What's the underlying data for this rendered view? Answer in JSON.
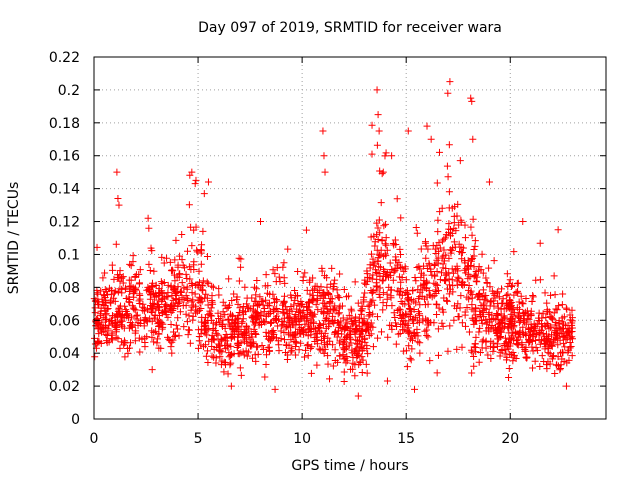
{
  "chart_data": {
    "type": "scatter",
    "title": "Day 097 of 2019, SRMTID for receiver wara",
    "xlabel": "GPS time / hours",
    "ylabel": "SRMTID / TECUs",
    "xlim": [
      0,
      24.6
    ],
    "ylim": [
      0,
      0.22
    ],
    "x_ticks": [
      0,
      5,
      10,
      15,
      20
    ],
    "x_tick_labels": [
      "0",
      "5",
      "10",
      "15",
      "20"
    ],
    "y_ticks": [
      0,
      0.02,
      0.04,
      0.06,
      0.08,
      0.1,
      0.12,
      0.14,
      0.16,
      0.18,
      0.2,
      0.22
    ],
    "y_tick_labels": [
      "0",
      "0.02",
      "0.04",
      "0.06",
      "0.08",
      "0.1",
      "0.12",
      "0.14",
      "0.16",
      "0.18",
      "0.2",
      "0.22"
    ],
    "grid": true,
    "legend": "none",
    "marker": "plus",
    "marker_color": "#ff0000",
    "sample_count": 2300,
    "x_range_of_data": [
      0,
      23
    ],
    "envelope": [
      {
        "t": 0,
        "median": 0.062,
        "spread": 0.012
      },
      {
        "t": 1,
        "median": 0.066,
        "spread": 0.013
      },
      {
        "t": 2,
        "median": 0.067,
        "spread": 0.013
      },
      {
        "t": 3,
        "median": 0.065,
        "spread": 0.013
      },
      {
        "t": 4,
        "median": 0.075,
        "spread": 0.015
      },
      {
        "t": 4.7,
        "median": 0.085,
        "spread": 0.02
      },
      {
        "t": 5.5,
        "median": 0.062,
        "spread": 0.014
      },
      {
        "t": 6.5,
        "median": 0.05,
        "spread": 0.011
      },
      {
        "t": 7.5,
        "median": 0.058,
        "spread": 0.012
      },
      {
        "t": 8.5,
        "median": 0.06,
        "spread": 0.012
      },
      {
        "t": 9.5,
        "median": 0.058,
        "spread": 0.012
      },
      {
        "t": 10.5,
        "median": 0.06,
        "spread": 0.013
      },
      {
        "t": 11,
        "median": 0.065,
        "spread": 0.017
      },
      {
        "t": 12,
        "median": 0.05,
        "spread": 0.012
      },
      {
        "t": 12.7,
        "median": 0.045,
        "spread": 0.012
      },
      {
        "t": 13.3,
        "median": 0.08,
        "spread": 0.02
      },
      {
        "t": 13.8,
        "median": 0.1,
        "spread": 0.025
      },
      {
        "t": 14.5,
        "median": 0.08,
        "spread": 0.02
      },
      {
        "t": 15.2,
        "median": 0.062,
        "spread": 0.014
      },
      {
        "t": 15.8,
        "median": 0.07,
        "spread": 0.017
      },
      {
        "t": 16.5,
        "median": 0.085,
        "spread": 0.022
      },
      {
        "t": 17.2,
        "median": 0.095,
        "spread": 0.025
      },
      {
        "t": 18,
        "median": 0.085,
        "spread": 0.022
      },
      {
        "t": 18.8,
        "median": 0.06,
        "spread": 0.015
      },
      {
        "t": 19.5,
        "median": 0.055,
        "spread": 0.012
      },
      {
        "t": 20.3,
        "median": 0.06,
        "spread": 0.013
      },
      {
        "t": 21,
        "median": 0.055,
        "spread": 0.012
      },
      {
        "t": 22,
        "median": 0.05,
        "spread": 0.012
      },
      {
        "t": 23,
        "median": 0.05,
        "spread": 0.011
      }
    ],
    "notable_points": [
      {
        "x": 1.1,
        "y": 0.15
      },
      {
        "x": 1.15,
        "y": 0.134
      },
      {
        "x": 1.2,
        "y": 0.13
      },
      {
        "x": 2.6,
        "y": 0.122
      },
      {
        "x": 4.7,
        "y": 0.15
      },
      {
        "x": 4.9,
        "y": 0.145
      },
      {
        "x": 5.3,
        "y": 0.137
      },
      {
        "x": 5.5,
        "y": 0.144
      },
      {
        "x": 8.0,
        "y": 0.12
      },
      {
        "x": 11.0,
        "y": 0.175
      },
      {
        "x": 11.05,
        "y": 0.16
      },
      {
        "x": 11.1,
        "y": 0.15
      },
      {
        "x": 13.6,
        "y": 0.2
      },
      {
        "x": 13.65,
        "y": 0.185
      },
      {
        "x": 13.7,
        "y": 0.175
      },
      {
        "x": 13.9,
        "y": 0.15
      },
      {
        "x": 14.3,
        "y": 0.16
      },
      {
        "x": 15.1,
        "y": 0.175
      },
      {
        "x": 16.0,
        "y": 0.178
      },
      {
        "x": 16.2,
        "y": 0.17
      },
      {
        "x": 16.6,
        "y": 0.162
      },
      {
        "x": 17.1,
        "y": 0.205
      },
      {
        "x": 17.0,
        "y": 0.198
      },
      {
        "x": 17.6,
        "y": 0.157
      },
      {
        "x": 18.1,
        "y": 0.195
      },
      {
        "x": 18.15,
        "y": 0.193
      },
      {
        "x": 18.2,
        "y": 0.17
      },
      {
        "x": 19.0,
        "y": 0.144
      },
      {
        "x": 20.6,
        "y": 0.12
      },
      {
        "x": 22.3,
        "y": 0.115
      },
      {
        "x": 12.7,
        "y": 0.014
      },
      {
        "x": 6.6,
        "y": 0.02
      },
      {
        "x": 22.7,
        "y": 0.02
      },
      {
        "x": 15.4,
        "y": 0.018
      },
      {
        "x": 8.7,
        "y": 0.018
      }
    ]
  }
}
